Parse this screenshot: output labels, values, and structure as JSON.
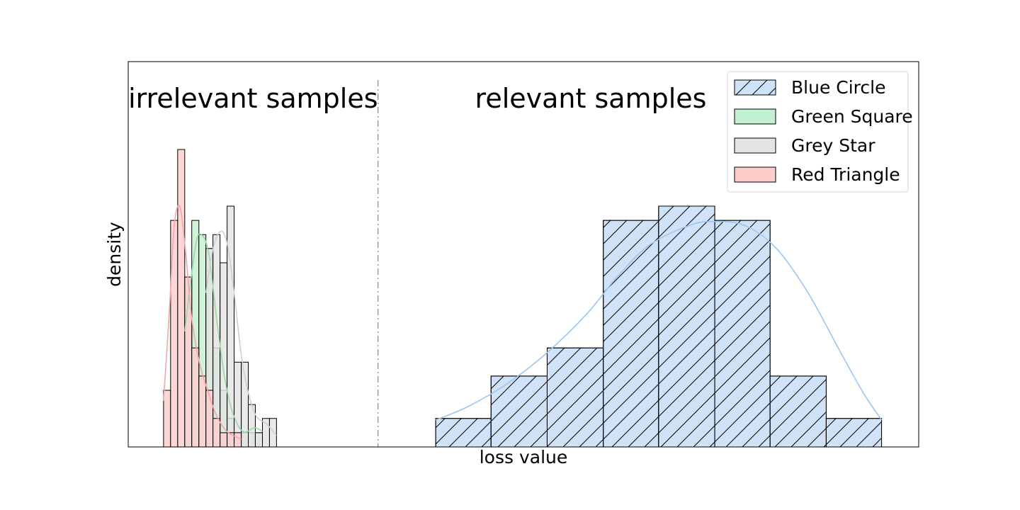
{
  "chart_data": {
    "type": "histogram",
    "title": "",
    "xlabel": "loss value",
    "ylabel": "density",
    "x_ticks": "hidden",
    "y_ticks": "hidden",
    "xlim": [
      0,
      1
    ],
    "ylim": [
      0,
      1
    ],
    "grid": false,
    "legend_placement": "top-right",
    "annotations": {
      "left_region": "irrelevant samples",
      "right_region": "relevant samples",
      "divider_x": 0.316
    },
    "series": [
      {
        "name": "Blue Circle",
        "color": "#cfe2f7",
        "kde_color": "#9ec5ec",
        "hatch": "diagonal",
        "bin_edges": [
          0.389,
          0.459,
          0.53,
          0.601,
          0.671,
          0.742,
          0.812,
          0.883,
          0.953
        ],
        "density": [
          0.074,
          0.184,
          0.257,
          0.588,
          0.625,
          0.588,
          0.184,
          0.074
        ],
        "kde": [
          [
            0.389,
            0.07
          ],
          [
            0.43,
            0.105
          ],
          [
            0.48,
            0.165
          ],
          [
            0.53,
            0.245
          ],
          [
            0.58,
            0.345
          ],
          [
            0.62,
            0.445
          ],
          [
            0.66,
            0.525
          ],
          [
            0.71,
            0.575
          ],
          [
            0.74,
            0.585
          ],
          [
            0.78,
            0.575
          ],
          [
            0.82,
            0.515
          ],
          [
            0.86,
            0.4
          ],
          [
            0.9,
            0.25
          ],
          [
            0.93,
            0.14
          ],
          [
            0.953,
            0.07
          ]
        ]
      },
      {
        "name": "Green Square",
        "color": "#c3f0cf",
        "kde_color": "#98d9a8",
        "bin_edges": [
          0.0715,
          0.0804,
          0.0894,
          0.0983,
          0.1072,
          0.1162,
          0.1251,
          0.134,
          0.143,
          0.1519,
          0.1608,
          0.1698
        ],
        "density": [
          0.441,
          0.588,
          0.551,
          0.515,
          0.257,
          0.147,
          0.074,
          0.037,
          0.037,
          0.037,
          0.037
        ],
        "kde": [
          [
            0.0715,
            0.3
          ],
          [
            0.085,
            0.52
          ],
          [
            0.093,
            0.55
          ],
          [
            0.102,
            0.5
          ],
          [
            0.112,
            0.33
          ],
          [
            0.122,
            0.18
          ],
          [
            0.132,
            0.09
          ],
          [
            0.145,
            0.04
          ],
          [
            0.16,
            0.05
          ],
          [
            0.1698,
            0.04
          ]
        ]
      },
      {
        "name": "Grey Star",
        "color": "#e4e4e4",
        "kde_color": "#cfcfcf",
        "bin_edges": [
          0.0983,
          0.1072,
          0.1162,
          0.1251,
          0.134,
          0.143,
          0.1519,
          0.1608,
          0.1698,
          0.1787,
          0.1876
        ],
        "density": [
          0.515,
          0.551,
          0.478,
          0.625,
          0.22,
          0.22,
          0.11,
          0.037,
          0.074,
          0.074
        ],
        "kde": [
          [
            0.0983,
            0.4
          ],
          [
            0.108,
            0.52
          ],
          [
            0.118,
            0.56
          ],
          [
            0.126,
            0.52
          ],
          [
            0.134,
            0.4
          ],
          [
            0.143,
            0.24
          ],
          [
            0.152,
            0.14
          ],
          [
            0.162,
            0.08
          ],
          [
            0.175,
            0.06
          ],
          [
            0.1876,
            0.03
          ]
        ]
      },
      {
        "name": "Red Triangle",
        "color": "#ffcccc",
        "kde_color": "#f0a8a8",
        "bin_edges": [
          0.0447,
          0.0536,
          0.0626,
          0.0715,
          0.0804,
          0.0894,
          0.0983,
          0.1072,
          0.1162,
          0.1251,
          0.134,
          0.143
        ],
        "density": [
          0.147,
          0.588,
          0.772,
          0.441,
          0.257,
          0.184,
          0.147,
          0.074,
          0.037,
          0.037,
          0.037
        ],
        "kde": [
          [
            0.0447,
            0.12
          ],
          [
            0.052,
            0.35
          ],
          [
            0.058,
            0.57
          ],
          [
            0.065,
            0.625
          ],
          [
            0.072,
            0.52
          ],
          [
            0.08,
            0.34
          ],
          [
            0.09,
            0.22
          ],
          [
            0.1,
            0.15
          ],
          [
            0.112,
            0.08
          ],
          [
            0.125,
            0.04
          ],
          [
            0.143,
            0.02
          ]
        ]
      }
    ]
  }
}
